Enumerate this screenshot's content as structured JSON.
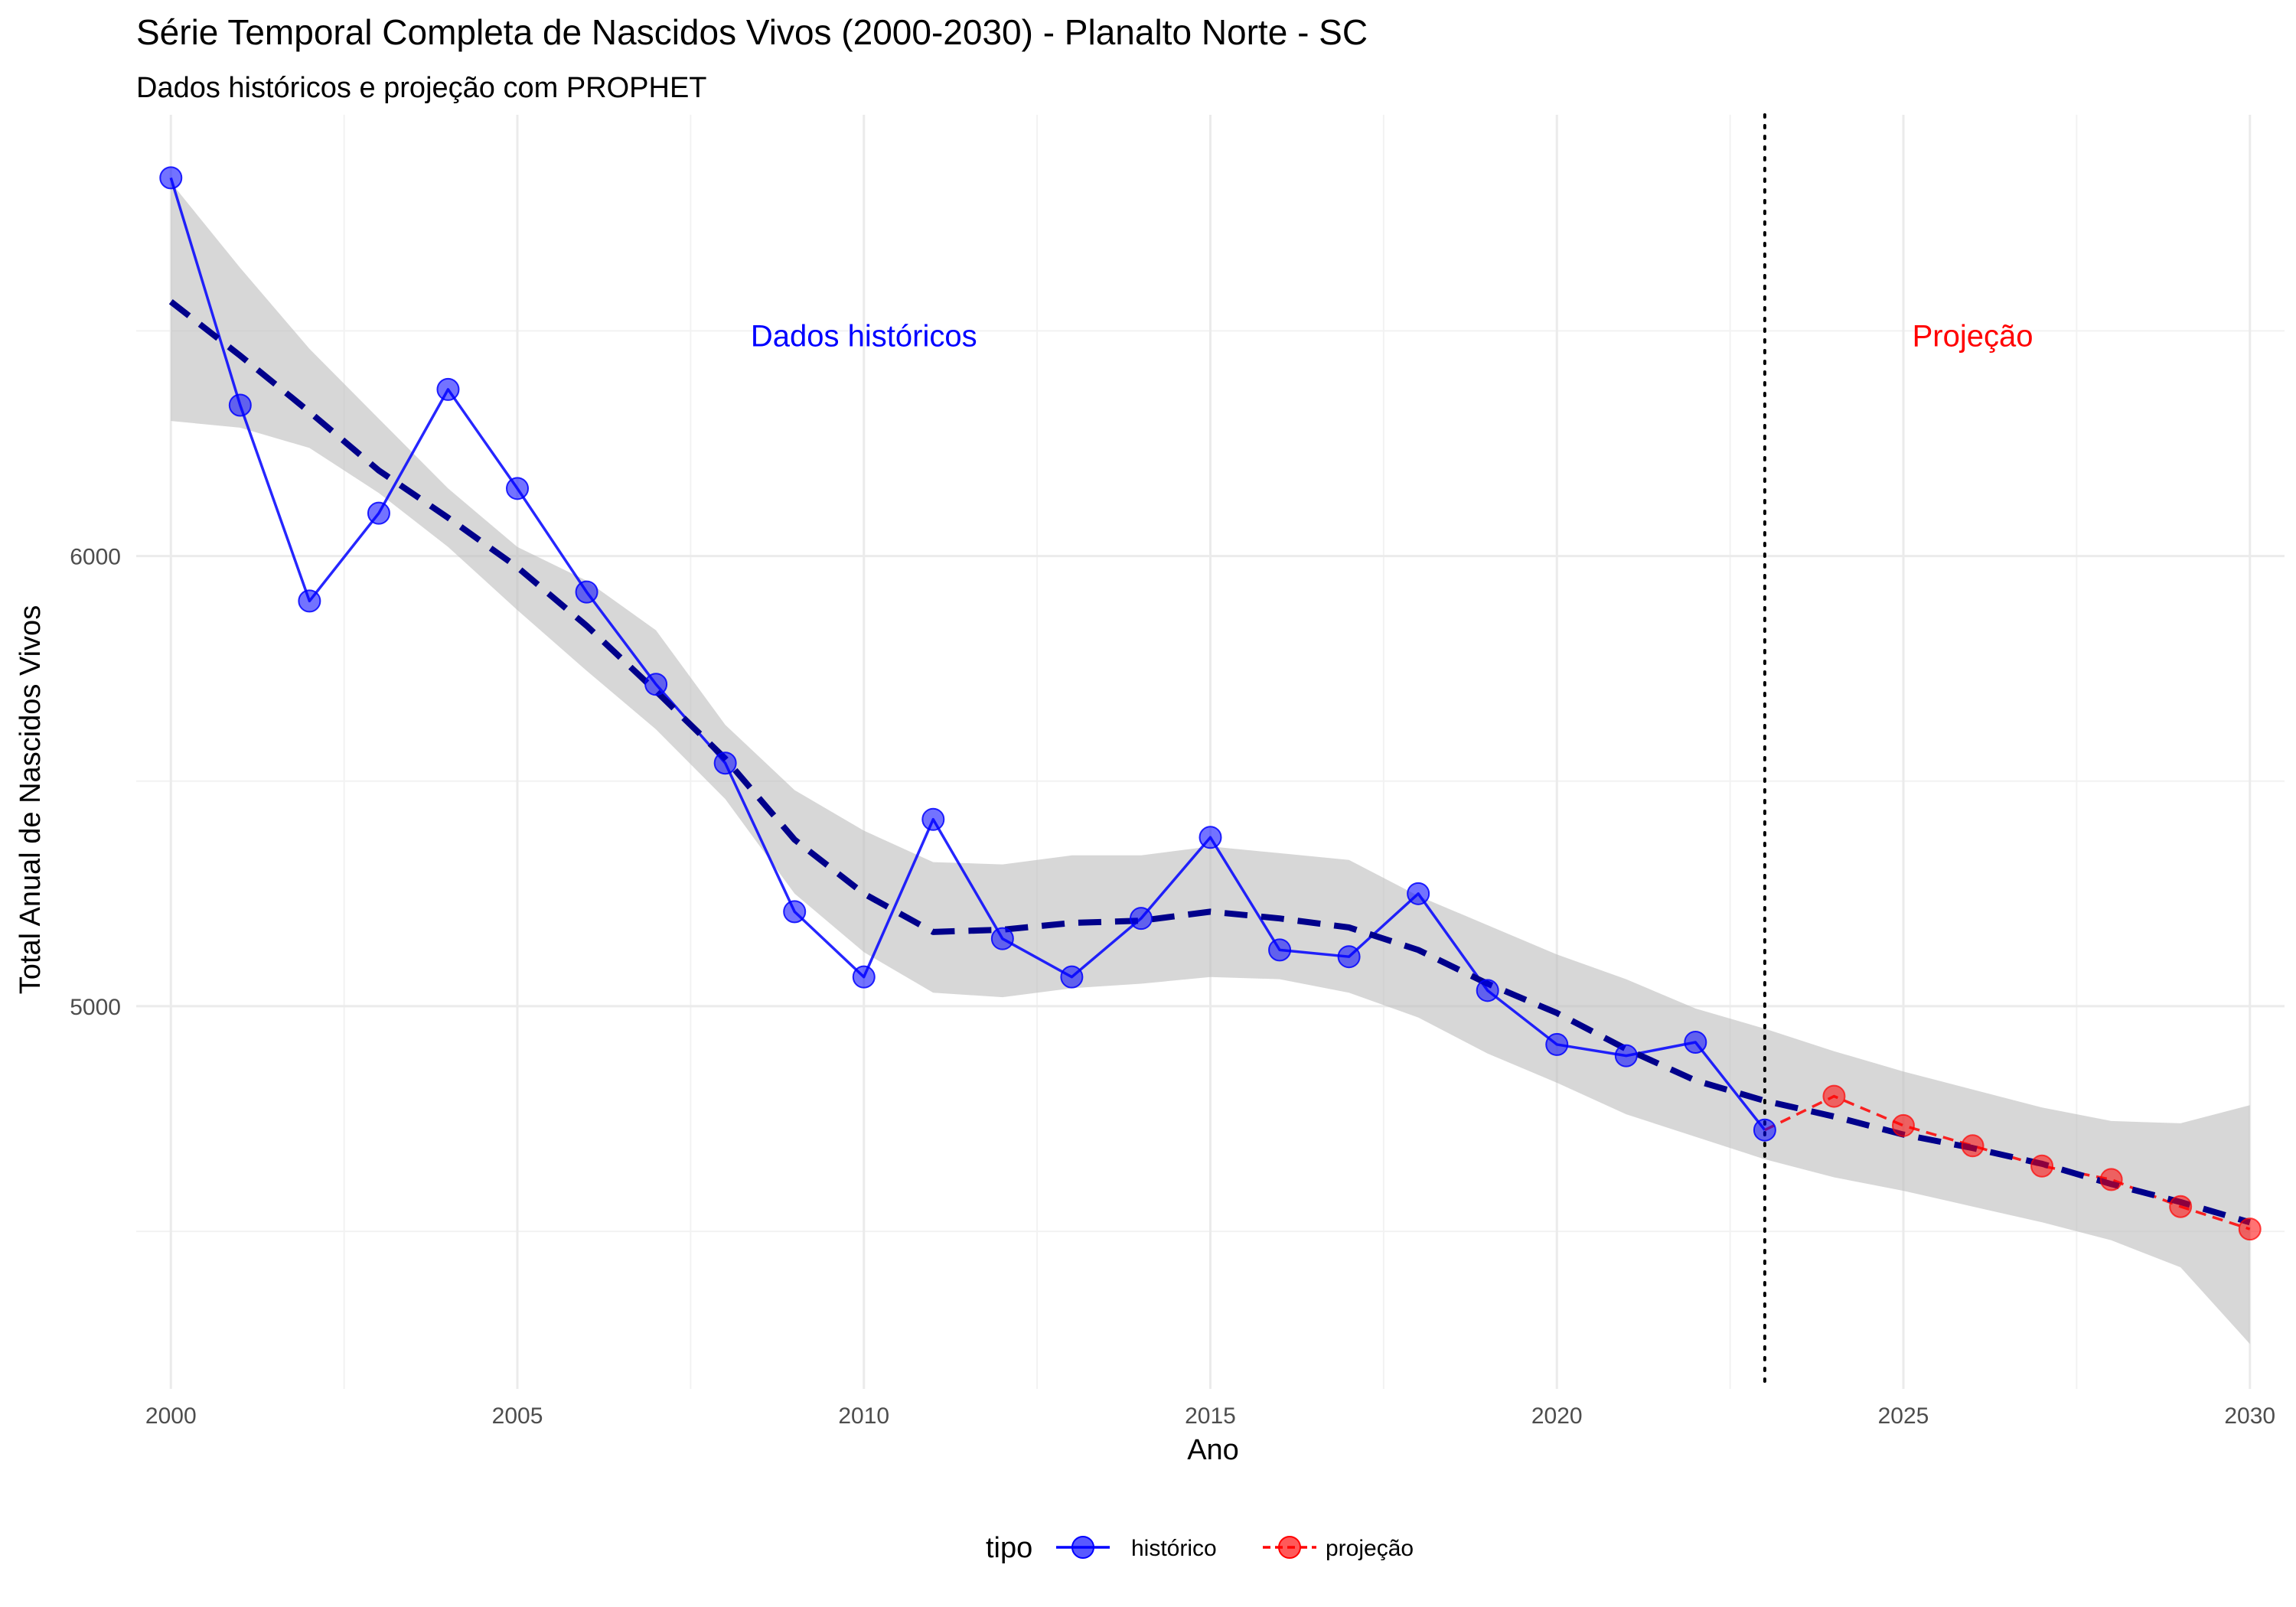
{
  "chart_data": {
    "type": "line",
    "title": "Série Temporal Completa de Nascidos Vivos (2000-2030) -  Planalto Norte - SC",
    "subtitle": "Dados históricos e projeção com PROPHET",
    "xlabel": "Ano",
    "ylabel": "Total Anual de Nascidos Vivos",
    "xlim": [
      1999.5,
      2030.5
    ],
    "ylim": [
      4150,
      6980
    ],
    "x_ticks": [
      2000,
      2005,
      2010,
      2015,
      2020,
      2025,
      2030
    ],
    "y_ticks": [
      5000,
      6000
    ],
    "grid": true,
    "legend": {
      "title": "tipo",
      "position": "bottom",
      "entries": [
        {
          "label": "histórico",
          "color": "#0000ff"
        },
        {
          "label": "projeção",
          "color": "#ff0000"
        }
      ]
    },
    "split_year": 2023,
    "annotations": [
      {
        "text": "Dados históricos",
        "x": 2010,
        "y": 6490,
        "color": "#0000ff"
      },
      {
        "text": "Projeção",
        "x": 2026,
        "y": 6490,
        "color": "#ff0000"
      }
    ],
    "series": [
      {
        "name": "histórico",
        "color": "#0000ff",
        "x": [
          2000,
          2001,
          2002,
          2003,
          2004,
          2005,
          2006,
          2007,
          2008,
          2009,
          2010,
          2011,
          2012,
          2013,
          2014,
          2015,
          2016,
          2017,
          2018,
          2019,
          2020,
          2021,
          2022,
          2023
        ],
        "y": [
          6840,
          6335,
          5900,
          6095,
          6370,
          6150,
          5920,
          5715,
          5540,
          5210,
          5065,
          5415,
          5150,
          5065,
          5195,
          5375,
          5125,
          5110,
          5250,
          5035,
          4915,
          4890,
          4920,
          4725
        ]
      },
      {
        "name": "projeção",
        "color": "#ff0000",
        "x": [
          2023,
          2024,
          2025,
          2026,
          2027,
          2028,
          2029,
          2030
        ],
        "y": [
          4725,
          4800,
          4735,
          4690,
          4645,
          4615,
          4555,
          4505
        ]
      }
    ],
    "trend": {
      "color": "#00008b",
      "x": [
        2000,
        2001,
        2002,
        2003,
        2004,
        2005,
        2006,
        2007,
        2008,
        2009,
        2010,
        2011,
        2012,
        2013,
        2014,
        2015,
        2016,
        2017,
        2018,
        2019,
        2020,
        2021,
        2022,
        2023,
        2024,
        2025,
        2026,
        2027,
        2028,
        2029,
        2030
      ],
      "y": [
        6565,
        6445,
        6320,
        6190,
        6085,
        5975,
        5845,
        5700,
        5550,
        5370,
        5250,
        5165,
        5170,
        5185,
        5190,
        5210,
        5195,
        5175,
        5125,
        5050,
        4985,
        4905,
        4835,
        4790,
        4755,
        4715,
        4685,
        4650,
        4605,
        4565,
        4520
      ],
      "lower": [
        6300,
        6285,
        6240,
        6140,
        6020,
        5880,
        5745,
        5615,
        5460,
        5250,
        5120,
        5030,
        5020,
        5040,
        5050,
        5065,
        5060,
        5030,
        4975,
        4895,
        4830,
        4760,
        4710,
        4660,
        4620,
        4590,
        4555,
        4520,
        4480,
        4420,
        4250
      ],
      "upper": [
        6830,
        6640,
        6460,
        6305,
        6150,
        6020,
        5945,
        5835,
        5625,
        5480,
        5390,
        5320,
        5315,
        5335,
        5335,
        5355,
        5340,
        5325,
        5245,
        5180,
        5115,
        5060,
        4995,
        4950,
        4900,
        4855,
        4815,
        4775,
        4745,
        4740,
        4780
      ]
    }
  }
}
